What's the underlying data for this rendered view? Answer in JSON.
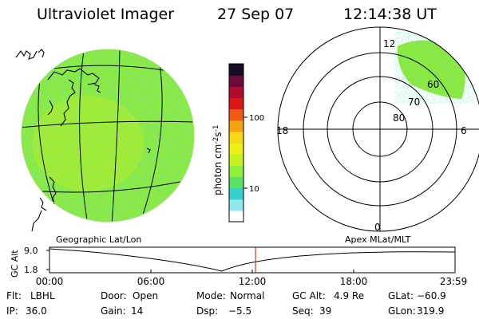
{
  "header": {
    "title": "Ultraviolet Imager",
    "date": "27 Sep 07",
    "time": "12:14:38 UT"
  },
  "colorbar": {
    "label": "photon cm",
    "label_sup1": "-2",
    "label_s": "s",
    "label_sup2": "-1",
    "ticks": [
      "100",
      "10"
    ],
    "colors": [
      "#ffffff",
      "#8ee8ee",
      "#35d1cf",
      "#5be063",
      "#8ef03a",
      "#c8f21e",
      "#ecee15",
      "#f7d814",
      "#f7a213",
      "#ef5d12",
      "#dd1515",
      "#b10c2c",
      "#6d0839",
      "#160a25"
    ]
  },
  "earth_panel": {
    "fill_color": "#8ee832",
    "frame_label": "Geographic Lat/Lon"
  },
  "polar_panel": {
    "frame_label": "Apex MLat/MLT",
    "mlt_labels": {
      "top": "12",
      "left": "18",
      "right": "6",
      "bottom": "0"
    },
    "lat_labels": [
      "80",
      "70",
      "60"
    ]
  },
  "timeline": {
    "ylabel": "GC Alt",
    "y_ticks": [
      "9.0",
      "1.8"
    ],
    "x_ticks": [
      "00:00",
      "06:00",
      "12:00",
      "18:00",
      "23:59"
    ],
    "marker_color": "#dd0000"
  },
  "status": {
    "row1": [
      {
        "label": "Flt:",
        "value": "LBHL"
      },
      {
        "label": "Door:",
        "value": "Open"
      },
      {
        "label": "Mode:",
        "value": "Normal"
      },
      {
        "label": "GC Alt:",
        "value": "4.9 Re"
      },
      {
        "label": "GLat:",
        "value": "−60.9"
      }
    ],
    "row2": [
      {
        "label": "IP:",
        "value": "36.0"
      },
      {
        "label": "Gain:",
        "value": "14"
      },
      {
        "label": "Dsp:",
        "value": "−5.5"
      },
      {
        "label": "Seq:",
        "value": "39"
      },
      {
        "label": "GLon:",
        "value": "319.9"
      }
    ]
  }
}
